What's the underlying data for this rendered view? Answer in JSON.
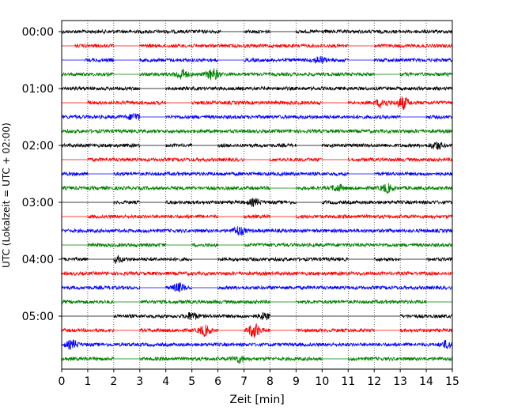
{
  "chart_data": {
    "type": "line",
    "subtype": "helicorder",
    "xlabel": "Zeit  [min]",
    "ylabel": "UTC (Lokalzeit = UTC + 02:00)",
    "xlim": [
      0,
      15
    ],
    "x_ticks": [
      "0",
      "1",
      "2",
      "3",
      "4",
      "5",
      "6",
      "7",
      "8",
      "9",
      "10",
      "11",
      "12",
      "13",
      "14",
      "15"
    ],
    "y_tick_labels": [
      "00:00",
      "01:00",
      "02:00",
      "03:00",
      "04:00",
      "05:00"
    ],
    "row_interval_minutes": 15,
    "grid": "vertical dotted at each minute",
    "trace_colors": [
      "#000000",
      "#ff0000",
      "#0000ff",
      "#008000"
    ],
    "rows": [
      {
        "time": "00:00",
        "color": "#000000",
        "gaps": [
          [
            6.1,
            7.0
          ],
          [
            8.0,
            9.0
          ]
        ],
        "events": []
      },
      {
        "time": "00:15",
        "color": "#ff0000",
        "gaps": [
          [
            0.0,
            0.5
          ],
          [
            2.0,
            3.0
          ],
          [
            11.0,
            12.0
          ]
        ],
        "events": []
      },
      {
        "time": "00:30",
        "color": "#0000ff",
        "gaps": [
          [
            0.0,
            0.9
          ],
          [
            2.0,
            3.0
          ],
          [
            6.0,
            7.0
          ],
          [
            11.0,
            12.0
          ]
        ],
        "events": [
          {
            "t": 9.9,
            "amp": 1.5
          }
        ]
      },
      {
        "time": "00:45",
        "color": "#008000",
        "gaps": [
          [
            2.0,
            3.0
          ],
          [
            12.0,
            13.0
          ]
        ],
        "events": [
          {
            "t": 4.6,
            "amp": 2.3
          },
          {
            "t": 5.8,
            "amp": 2.5
          }
        ]
      },
      {
        "time": "01:00",
        "color": "#000000",
        "gaps": [
          [
            3.0,
            4.0
          ]
        ],
        "events": []
      },
      {
        "time": "01:15",
        "color": "#ff0000",
        "gaps": [
          [
            0.0,
            1.0
          ],
          [
            4.0,
            5.0
          ],
          [
            10.0,
            11.0
          ]
        ],
        "events": [
          {
            "t": 12.3,
            "amp": 2.0
          },
          {
            "t": 13.1,
            "amp": 2.8
          }
        ]
      },
      {
        "time": "01:30",
        "color": "#0000ff",
        "gaps": [
          [
            3.0,
            4.0
          ],
          [
            13.0,
            14.0
          ]
        ],
        "events": [
          {
            "t": 2.8,
            "amp": 1.5
          }
        ]
      },
      {
        "time": "01:45",
        "color": "#008000",
        "gaps": [],
        "events": []
      },
      {
        "time": "02:00",
        "color": "#000000",
        "gaps": [
          [
            3.0,
            4.0
          ],
          [
            5.0,
            6.0
          ],
          [
            9.0,
            10.0
          ]
        ],
        "events": [
          {
            "t": 14.4,
            "amp": 1.6
          }
        ]
      },
      {
        "time": "02:15",
        "color": "#ff0000",
        "gaps": [
          [
            0.0,
            1.0
          ],
          [
            7.0,
            8.0
          ],
          [
            10.0,
            11.0
          ]
        ],
        "events": []
      },
      {
        "time": "02:30",
        "color": "#0000ff",
        "gaps": [
          [
            1.0,
            2.0
          ],
          [
            11.0,
            12.0
          ]
        ],
        "events": []
      },
      {
        "time": "02:45",
        "color": "#008000",
        "gaps": [
          [
            8.0,
            9.0
          ]
        ],
        "events": [
          {
            "t": 10.6,
            "amp": 1.4
          },
          {
            "t": 12.5,
            "amp": 1.8
          }
        ]
      },
      {
        "time": "03:00",
        "color": "#000000",
        "gaps": [
          [
            0.0,
            2.0
          ],
          [
            3.0,
            4.0
          ],
          [
            9.0,
            10.0
          ]
        ],
        "events": [
          {
            "t": 7.4,
            "amp": 1.4
          }
        ]
      },
      {
        "time": "03:15",
        "color": "#ff0000",
        "gaps": [
          [
            0.0,
            1.0
          ],
          [
            6.0,
            7.0
          ],
          [
            8.0,
            9.0
          ]
        ],
        "events": []
      },
      {
        "time": "03:30",
        "color": "#0000ff",
        "gaps": [],
        "events": [
          {
            "t": 6.8,
            "amp": 1.9
          }
        ]
      },
      {
        "time": "03:45",
        "color": "#008000",
        "gaps": [
          [
            0.0,
            1.0
          ],
          [
            4.0,
            5.0
          ],
          [
            6.0,
            7.0
          ]
        ],
        "events": []
      },
      {
        "time": "04:00",
        "color": "#000000",
        "gaps": [
          [
            1.0,
            2.0
          ],
          [
            5.0,
            6.0
          ],
          [
            11.0,
            12.0
          ],
          [
            13.0,
            14.0
          ]
        ],
        "events": [
          {
            "t": 2.1,
            "amp": 1.4
          }
        ]
      },
      {
        "time": "04:15",
        "color": "#ff0000",
        "gaps": [],
        "events": []
      },
      {
        "time": "04:30",
        "color": "#0000ff",
        "gaps": [
          [
            3.0,
            4.0
          ],
          [
            5.0,
            6.0
          ]
        ],
        "events": [
          {
            "t": 4.5,
            "amp": 1.8
          }
        ]
      },
      {
        "time": "04:45",
        "color": "#008000",
        "gaps": [
          [
            2.0,
            3.0
          ],
          [
            8.0,
            9.0
          ],
          [
            14.0,
            15.0
          ]
        ],
        "events": []
      },
      {
        "time": "05:00",
        "color": "#000000",
        "gaps": [
          [
            0.0,
            2.0
          ],
          [
            8.0,
            12.0
          ],
          [
            12.0,
            13.0
          ]
        ],
        "events": [
          {
            "t": 5.0,
            "amp": 1.6
          },
          {
            "t": 7.8,
            "amp": 1.4
          }
        ]
      },
      {
        "time": "05:15",
        "color": "#ff0000",
        "gaps": [
          [
            2.0,
            3.0
          ],
          [
            6.0,
            7.0
          ],
          [
            8.0,
            9.0
          ],
          [
            12.0,
            13.0
          ]
        ],
        "events": [
          {
            "t": 5.5,
            "amp": 2.2
          },
          {
            "t": 7.4,
            "amp": 3.2
          }
        ]
      },
      {
        "time": "05:30",
        "color": "#0000ff",
        "gaps": [],
        "events": [
          {
            "t": 0.4,
            "amp": 1.8
          },
          {
            "t": 14.8,
            "amp": 1.6
          }
        ]
      },
      {
        "time": "05:45",
        "color": "#008000",
        "gaps": [
          [
            2.0,
            3.0
          ],
          [
            10.0,
            11.0
          ]
        ],
        "events": [
          {
            "t": 6.8,
            "amp": 1.5
          }
        ]
      }
    ]
  }
}
